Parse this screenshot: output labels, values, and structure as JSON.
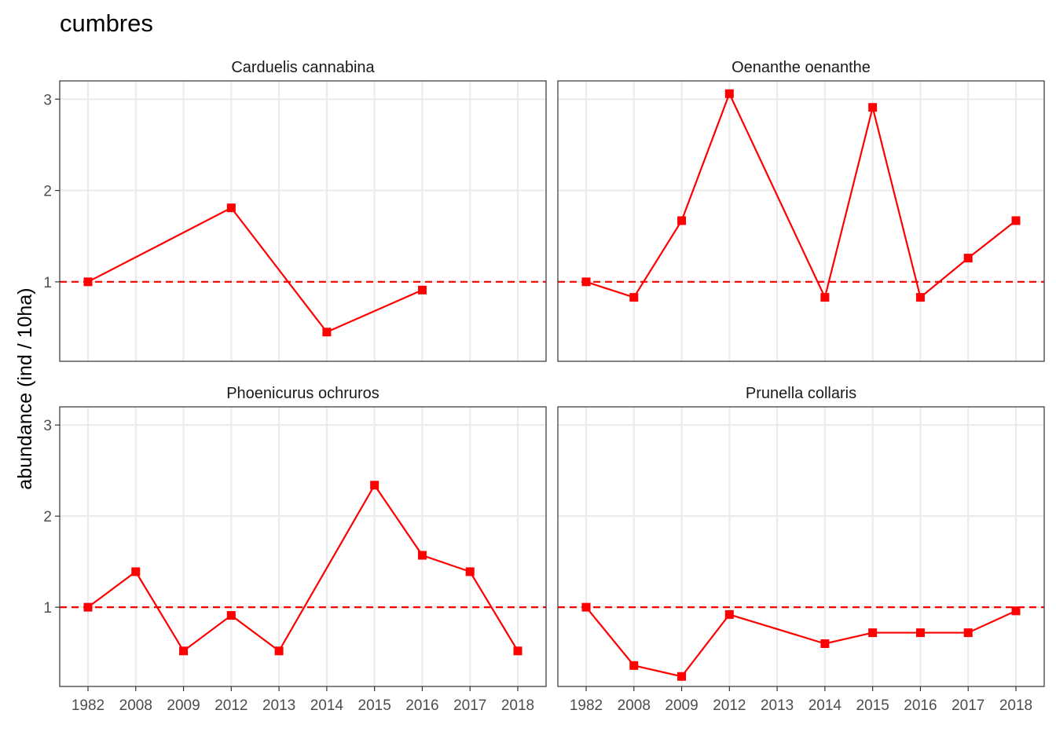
{
  "chart_data": {
    "type": "line",
    "title": "cumbres",
    "ylabel": "abundance (ind / 10ha)",
    "xlabel": "",
    "x_categories": [
      "1982",
      "2008",
      "2009",
      "2012",
      "2013",
      "2014",
      "2015",
      "2016",
      "2017",
      "2018"
    ],
    "y_ticks": [
      "1",
      "2",
      "3"
    ],
    "ylim": [
      0.13,
      3.2
    ],
    "reference_line": 1,
    "colors": {
      "series": "#ff0000",
      "grid": "#ebebeb",
      "panel_border": "#333333"
    },
    "grid": true,
    "facets": [
      {
        "title": "Carduelis cannabina",
        "points": [
          {
            "x": "1982",
            "y": 1.0
          },
          {
            "x": "2012",
            "y": 1.81
          },
          {
            "x": "2014",
            "y": 0.45
          },
          {
            "x": "2016",
            "y": 0.91
          }
        ]
      },
      {
        "title": "Oenanthe oenanthe",
        "points": [
          {
            "x": "1982",
            "y": 1.0
          },
          {
            "x": "2008",
            "y": 0.83
          },
          {
            "x": "2009",
            "y": 1.67
          },
          {
            "x": "2012",
            "y": 3.06
          },
          {
            "x": "2014",
            "y": 0.83
          },
          {
            "x": "2015",
            "y": 2.91
          },
          {
            "x": "2016",
            "y": 0.83
          },
          {
            "x": "2017",
            "y": 1.26
          },
          {
            "x": "2018",
            "y": 1.67
          }
        ]
      },
      {
        "title": "Phoenicurus ochruros",
        "points": [
          {
            "x": "1982",
            "y": 1.0
          },
          {
            "x": "2008",
            "y": 1.39
          },
          {
            "x": "2009",
            "y": 0.52
          },
          {
            "x": "2012",
            "y": 0.91
          },
          {
            "x": "2013",
            "y": 0.52
          },
          {
            "x": "2015",
            "y": 2.34
          },
          {
            "x": "2016",
            "y": 1.57
          },
          {
            "x": "2017",
            "y": 1.39
          },
          {
            "x": "2018",
            "y": 0.52
          }
        ]
      },
      {
        "title": "Prunella collaris",
        "points": [
          {
            "x": "1982",
            "y": 1.0
          },
          {
            "x": "2008",
            "y": 0.36
          },
          {
            "x": "2009",
            "y": 0.24
          },
          {
            "x": "2012",
            "y": 0.92
          },
          {
            "x": "2014",
            "y": 0.6
          },
          {
            "x": "2015",
            "y": 0.72
          },
          {
            "x": "2016",
            "y": 0.72
          },
          {
            "x": "2017",
            "y": 0.72
          },
          {
            "x": "2018",
            "y": 0.96
          }
        ]
      }
    ]
  }
}
